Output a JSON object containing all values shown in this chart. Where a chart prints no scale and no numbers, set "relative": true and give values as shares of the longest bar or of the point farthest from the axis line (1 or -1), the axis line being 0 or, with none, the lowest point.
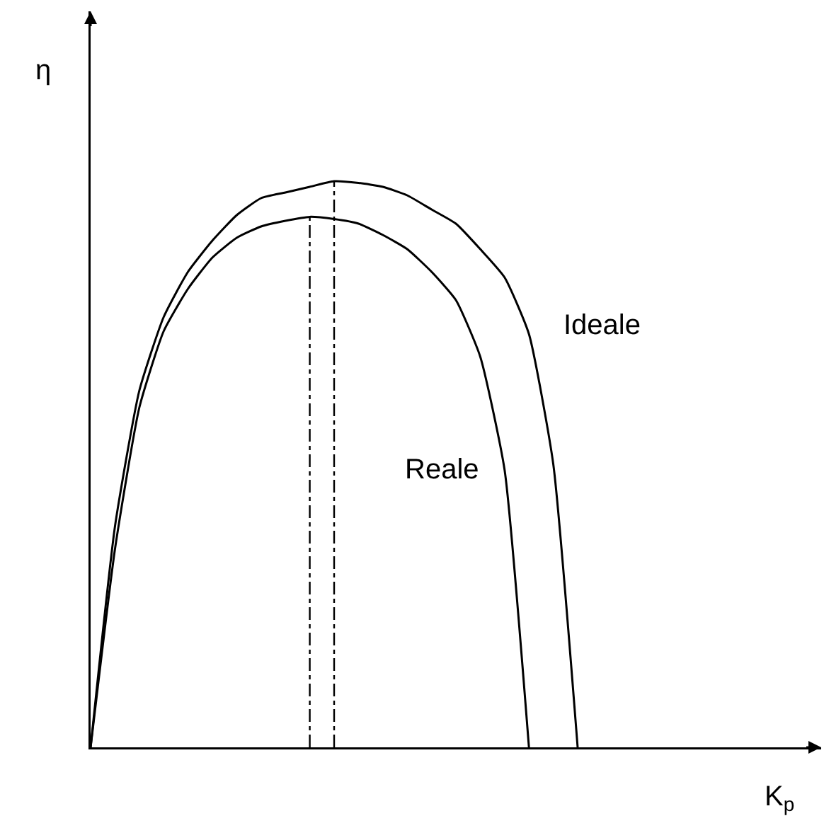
{
  "chart_data": {
    "type": "line",
    "relative": true,
    "xlabel": "K$_{p}$",
    "ylabel": "η",
    "legend": false,
    "grid": false,
    "marker": "none",
    "categories": [
      null,
      null,
      null,
      null,
      null,
      null,
      null,
      null,
      null,
      null,
      null,
      null,
      null,
      null,
      null,
      null,
      null,
      null,
      null,
      null,
      null,
      null,
      null,
      null,
      null,
      null,
      null,
      null,
      null,
      null,
      null
    ],
    "series": [
      {
        "name": "Ideale",
        "color": "#000000",
        "line_style": "solid",
        "values": [
          0,
          0.39,
          0.63,
          0.76,
          0.84,
          0.895,
          0.94,
          0.97,
          0.98,
          0.99,
          1,
          0.997,
          0.99,
          0.975,
          0.95,
          0.925,
          0.88,
          0.83,
          0.73,
          0.5,
          0,
          null,
          null,
          null,
          null,
          null,
          null,
          null,
          null,
          null,
          null
        ]
      },
      {
        "name": "Reale",
        "color": "#000000",
        "line_style": "solid",
        "values": [
          0,
          0.35,
          0.6,
          0.735,
          0.81,
          0.865,
          0.9,
          0.92,
          0.93,
          0.937,
          0.933,
          0.925,
          0.905,
          0.88,
          0.84,
          0.79,
          0.69,
          0.49,
          0,
          null,
          null,
          null,
          null,
          null,
          null,
          null,
          null,
          null,
          null,
          null,
          null
        ]
      }
    ]
  }
}
